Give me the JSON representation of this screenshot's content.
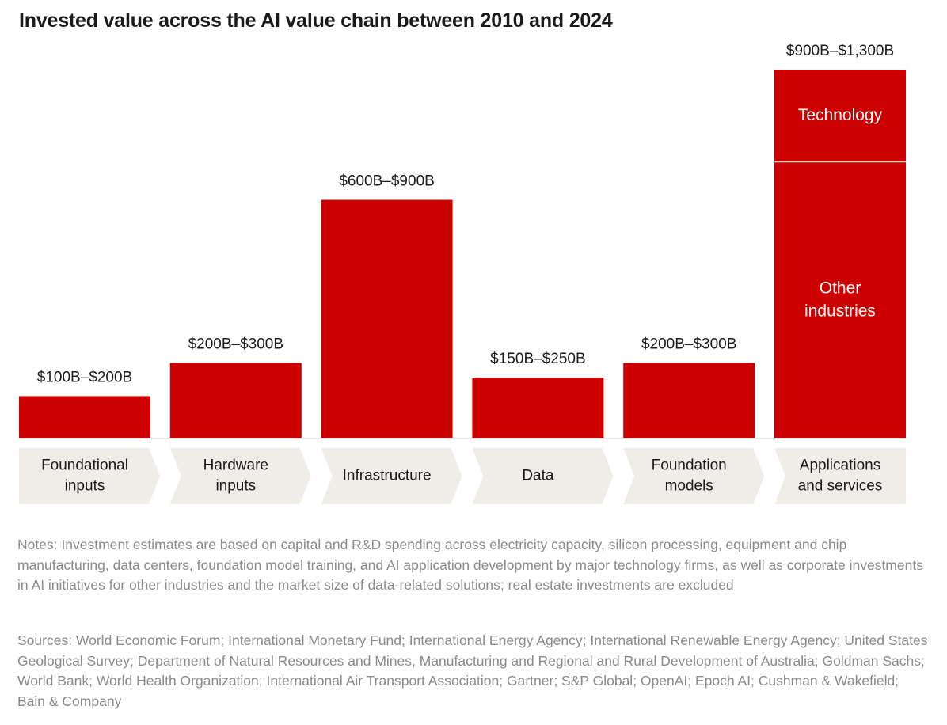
{
  "title": "Invested value across the AI value chain between 2010 and 2024",
  "notes": "Notes: Investment estimates are based on capital and R&D spending across electricity capacity, silicon processing, equipment and chip manufacturing, data centers, foundation model training, and AI application development by major technology firms, as well as corporate investments in AI initiatives for other industries and the market size of data-related solutions; real estate investments are excluded",
  "sources": "Sources: World Economic Forum; International Monetary Fund; International Energy Agency; International Renewable Energy Agency; United States Geological Survey; Department of Natural Resources and Mines, Manufacturing and Regional and Rural Development of Australia; Goldman Sachs; World Bank; World Health Organization; International Air Transport Association; Gartner; S&P Global; OpenAI; Epoch AI; Cushman & Wakefield; Bain & Company",
  "colors": {
    "bar": "#cc0000",
    "chevron": "#f0ede8",
    "label_text": "#ffffff"
  },
  "chart_data": {
    "type": "bar",
    "title": "Invested value across the AI value chain between 2010 and 2024",
    "units": "USD billions",
    "categories": [
      [
        "Foundational",
        "inputs"
      ],
      [
        "Hardware",
        "inputs"
      ],
      [
        "Infrastructure"
      ],
      [
        "Data"
      ],
      [
        "Foundation",
        "models"
      ],
      [
        "Applications",
        "and services"
      ]
    ],
    "ranges": [
      [
        100,
        200
      ],
      [
        200,
        300
      ],
      [
        600,
        900
      ],
      [
        150,
        250
      ],
      [
        200,
        300
      ],
      [
        900,
        1300
      ]
    ],
    "value_labels": [
      "$100B–$200B",
      "$200B–$300B",
      "$600B–$900B",
      "$150B–$250B",
      "$200B–$300B",
      "$900B–$1,300B"
    ],
    "bar_values": [
      115,
      205,
      647,
      165,
      205,
      1000
    ],
    "stacked": {
      "category_index": 5,
      "segments": [
        {
          "name": [
            "Other",
            "industries"
          ],
          "value": 750
        },
        {
          "name": [
            "Technology"
          ],
          "value": 250
        }
      ]
    },
    "ylim": [
      0,
      1000
    ],
    "grid": false,
    "xlabel": "",
    "ylabel": ""
  }
}
